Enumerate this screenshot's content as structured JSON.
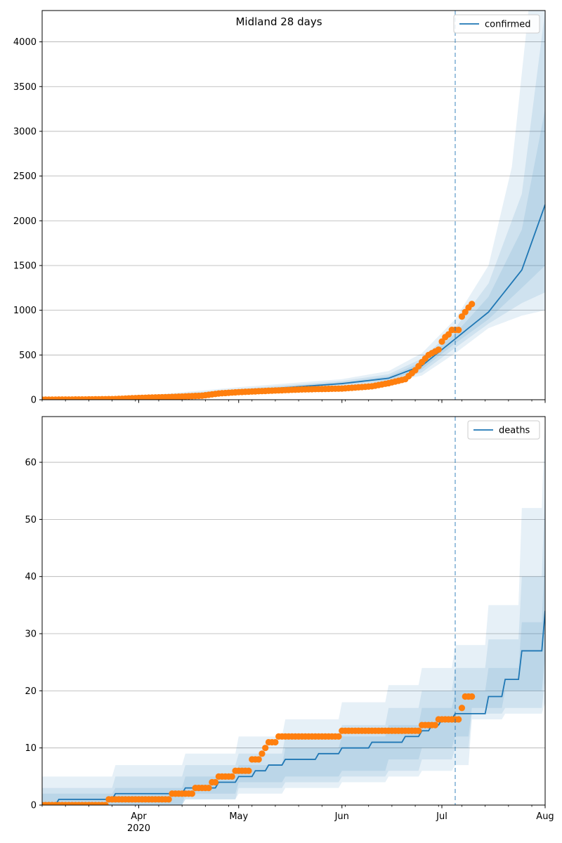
{
  "figure": {
    "title": "Midland 28 days",
    "colors": {
      "model": "#1f77b4",
      "observed": "#ff7f0e",
      "grid": "#b0b0b0",
      "split": "#1f77b4"
    },
    "x_axis": {
      "tick_labels": [
        "Apr",
        "May",
        "Jun",
        "Jul",
        "Aug"
      ],
      "year_label": "2020"
    }
  },
  "chart_data": [
    {
      "type": "line",
      "legend": "confirmed",
      "legend_position": "upper-right",
      "grid": "horizontal",
      "x_unit": "date",
      "xlim": [
        "2020-03-03",
        "2020-08-01"
      ],
      "forecast_start": "2020-07-05",
      "ylim": [
        0,
        4350
      ],
      "yticks": [
        0,
        500,
        1000,
        1500,
        2000,
        2500,
        3000,
        3500,
        4000
      ],
      "median": [
        [
          "2020-03-03",
          0
        ],
        [
          "2020-03-20",
          5
        ],
        [
          "2020-04-01",
          20
        ],
        [
          "2020-04-15",
          45
        ],
        [
          "2020-05-01",
          95
        ],
        [
          "2020-05-15",
          135
        ],
        [
          "2020-06-01",
          180
        ],
        [
          "2020-06-15",
          240
        ],
        [
          "2020-06-25",
          380
        ],
        [
          "2020-07-05",
          680
        ],
        [
          "2020-07-15",
          980
        ],
        [
          "2020-07-25",
          1450
        ],
        [
          "2020-08-01",
          2180
        ]
      ],
      "bands": [
        {
          "level": "outer",
          "lower": [
            [
              "2020-03-03",
              0
            ],
            [
              "2020-04-01",
              12
            ],
            [
              "2020-05-01",
              75
            ],
            [
              "2020-06-01",
              150
            ],
            [
              "2020-06-15",
              190
            ],
            [
              "2020-06-25",
              270
            ],
            [
              "2020-07-05",
              520
            ],
            [
              "2020-07-15",
              800
            ],
            [
              "2020-07-25",
              940
            ],
            [
              "2020-08-01",
              1000
            ]
          ],
          "upper": [
            [
              "2020-03-03",
              10
            ],
            [
              "2020-04-01",
              40
            ],
            [
              "2020-05-01",
              140
            ],
            [
              "2020-06-01",
              230
            ],
            [
              "2020-06-15",
              320
            ],
            [
              "2020-06-25",
              520
            ],
            [
              "2020-07-05",
              900
            ],
            [
              "2020-07-15",
              1500
            ],
            [
              "2020-07-22",
              2600
            ],
            [
              "2020-07-27",
              4350
            ],
            [
              "2020-08-01",
              4350
            ]
          ]
        },
        {
          "level": "middle",
          "lower": [
            [
              "2020-03-03",
              0
            ],
            [
              "2020-04-01",
              15
            ],
            [
              "2020-05-01",
              82
            ],
            [
              "2020-06-01",
              160
            ],
            [
              "2020-06-15",
              205
            ],
            [
              "2020-06-25",
              305
            ],
            [
              "2020-07-05",
              580
            ],
            [
              "2020-07-15",
              850
            ],
            [
              "2020-07-25",
              1080
            ],
            [
              "2020-08-01",
              1200
            ]
          ],
          "upper": [
            [
              "2020-03-03",
              6
            ],
            [
              "2020-04-01",
              30
            ],
            [
              "2020-05-01",
              120
            ],
            [
              "2020-06-01",
              210
            ],
            [
              "2020-06-15",
              285
            ],
            [
              "2020-06-25",
              460
            ],
            [
              "2020-07-05",
              800
            ],
            [
              "2020-07-15",
              1300
            ],
            [
              "2020-07-25",
              2300
            ],
            [
              "2020-08-01",
              4350
            ]
          ]
        },
        {
          "level": "inner",
          "lower": [
            [
              "2020-03-03",
              0
            ],
            [
              "2020-04-01",
              17
            ],
            [
              "2020-05-01",
              88
            ],
            [
              "2020-06-01",
              170
            ],
            [
              "2020-06-15",
              220
            ],
            [
              "2020-06-25",
              340
            ],
            [
              "2020-07-05",
              630
            ],
            [
              "2020-07-15",
              900
            ],
            [
              "2020-07-25",
              1250
            ],
            [
              "2020-08-01",
              1500
            ]
          ],
          "upper": [
            [
              "2020-03-03",
              3
            ],
            [
              "2020-04-01",
              25
            ],
            [
              "2020-05-01",
              105
            ],
            [
              "2020-06-01",
              195
            ],
            [
              "2020-06-15",
              262
            ],
            [
              "2020-06-25",
              420
            ],
            [
              "2020-07-05",
              740
            ],
            [
              "2020-07-15",
              1150
            ],
            [
              "2020-07-25",
              1900
            ],
            [
              "2020-08-01",
              3250
            ]
          ]
        }
      ],
      "observed": [
        [
          "2020-03-03",
          1
        ],
        [
          "2020-03-15",
          3
        ],
        [
          "2020-03-25",
          8
        ],
        [
          "2020-04-01",
          20
        ],
        [
          "2020-04-10",
          30
        ],
        [
          "2020-04-20",
          45
        ],
        [
          "2020-04-25",
          70
        ],
        [
          "2020-05-01",
          85
        ],
        [
          "2020-05-10",
          100
        ],
        [
          "2020-05-20",
          115
        ],
        [
          "2020-06-01",
          125
        ],
        [
          "2020-06-10",
          150
        ],
        [
          "2020-06-15",
          185
        ],
        [
          "2020-06-20",
          230
        ],
        [
          "2020-06-23",
          330
        ],
        [
          "2020-06-25",
          420
        ],
        [
          "2020-06-27",
          500
        ],
        [
          "2020-06-30",
          560
        ],
        [
          "2020-07-01",
          650
        ],
        [
          "2020-07-02",
          700
        ],
        [
          "2020-07-03",
          730
        ],
        [
          "2020-07-04",
          780
        ],
        [
          "2020-07-05",
          780
        ],
        [
          "2020-07-06",
          780
        ],
        [
          "2020-07-07",
          930
        ],
        [
          "2020-07-08",
          980
        ],
        [
          "2020-07-09",
          1030
        ],
        [
          "2020-07-10",
          1070
        ]
      ]
    },
    {
      "type": "line",
      "legend": "deaths",
      "legend_position": "upper-right",
      "grid": "horizontal",
      "x_unit": "date",
      "xlim": [
        "2020-03-03",
        "2020-08-01"
      ],
      "forecast_start": "2020-07-05",
      "ylim": [
        0,
        68
      ],
      "yticks": [
        0,
        10,
        20,
        30,
        40,
        50,
        60
      ],
      "median": [
        [
          "2020-03-03",
          0
        ],
        [
          "2020-03-08",
          1
        ],
        [
          "2020-03-25",
          2
        ],
        [
          "2020-04-15",
          3
        ],
        [
          "2020-04-25",
          4
        ],
        [
          "2020-05-01",
          5
        ],
        [
          "2020-05-06",
          6
        ],
        [
          "2020-05-10",
          7
        ],
        [
          "2020-05-15",
          8
        ],
        [
          "2020-05-25",
          9
        ],
        [
          "2020-06-01",
          10
        ],
        [
          "2020-06-10",
          11
        ],
        [
          "2020-06-20",
          12
        ],
        [
          "2020-06-25",
          13
        ],
        [
          "2020-06-28",
          14
        ],
        [
          "2020-07-01",
          15
        ],
        [
          "2020-07-05",
          16
        ],
        [
          "2020-07-15",
          19
        ],
        [
          "2020-07-20",
          22
        ],
        [
          "2020-07-25",
          27
        ],
        [
          "2020-08-01",
          34
        ]
      ],
      "bands": [
        {
          "level": "outer",
          "lower": [
            [
              "2020-03-03",
              0
            ],
            [
              "2020-04-15",
              1
            ],
            [
              "2020-05-01",
              2
            ],
            [
              "2020-05-15",
              3
            ],
            [
              "2020-06-01",
              4
            ],
            [
              "2020-06-15",
              5
            ],
            [
              "2020-06-25",
              6
            ],
            [
              "2020-07-05",
              7
            ],
            [
              "2020-07-10",
              15
            ],
            [
              "2020-07-20",
              16
            ],
            [
              "2020-08-01",
              18
            ]
          ],
          "upper": [
            [
              "2020-03-03",
              5
            ],
            [
              "2020-03-25",
              7
            ],
            [
              "2020-04-15",
              9
            ],
            [
              "2020-05-01",
              12
            ],
            [
              "2020-05-15",
              15
            ],
            [
              "2020-06-01",
              18
            ],
            [
              "2020-06-15",
              21
            ],
            [
              "2020-06-25",
              24
            ],
            [
              "2020-07-05",
              28
            ],
            [
              "2020-07-15",
              35
            ],
            [
              "2020-07-25",
              52
            ],
            [
              "2020-08-01",
              68
            ]
          ]
        },
        {
          "level": "middle",
          "lower": [
            [
              "2020-03-03",
              0
            ],
            [
              "2020-04-15",
              1
            ],
            [
              "2020-05-01",
              3
            ],
            [
              "2020-05-15",
              4
            ],
            [
              "2020-06-01",
              5
            ],
            [
              "2020-06-15",
              6
            ],
            [
              "2020-06-25",
              8
            ],
            [
              "2020-07-05",
              10
            ],
            [
              "2020-07-10",
              16
            ],
            [
              "2020-07-20",
              17
            ],
            [
              "2020-08-01",
              22
            ]
          ],
          "upper": [
            [
              "2020-03-03",
              3
            ],
            [
              "2020-03-25",
              5
            ],
            [
              "2020-04-15",
              7
            ],
            [
              "2020-05-01",
              9
            ],
            [
              "2020-05-15",
              12
            ],
            [
              "2020-06-01",
              14
            ],
            [
              "2020-06-15",
              17
            ],
            [
              "2020-06-25",
              20
            ],
            [
              "2020-07-05",
              24
            ],
            [
              "2020-07-15",
              29
            ],
            [
              "2020-07-25",
              40
            ],
            [
              "2020-08-01",
              56
            ]
          ]
        },
        {
          "level": "inner",
          "lower": [
            [
              "2020-03-03",
              0
            ],
            [
              "2020-04-15",
              2
            ],
            [
              "2020-05-01",
              4
            ],
            [
              "2020-05-15",
              5
            ],
            [
              "2020-06-01",
              6
            ],
            [
              "2020-06-15",
              8
            ],
            [
              "2020-06-25",
              10
            ],
            [
              "2020-07-05",
              12
            ],
            [
              "2020-07-10",
              17
            ],
            [
              "2020-07-20",
              20
            ],
            [
              "2020-08-01",
              26
            ]
          ],
          "upper": [
            [
              "2020-03-03",
              2
            ],
            [
              "2020-03-25",
              3
            ],
            [
              "2020-04-15",
              5
            ],
            [
              "2020-05-01",
              7
            ],
            [
              "2020-05-15",
              10
            ],
            [
              "2020-06-01",
              12
            ],
            [
              "2020-06-15",
              14
            ],
            [
              "2020-06-25",
              17
            ],
            [
              "2020-07-05",
              20
            ],
            [
              "2020-07-15",
              24
            ],
            [
              "2020-07-25",
              32
            ],
            [
              "2020-08-01",
              45
            ]
          ]
        }
      ],
      "observed": [
        [
          "2020-03-03",
          0
        ],
        [
          "2020-03-22",
          0
        ],
        [
          "2020-03-23",
          1
        ],
        [
          "2020-04-10",
          1
        ],
        [
          "2020-04-11",
          2
        ],
        [
          "2020-04-17",
          2
        ],
        [
          "2020-04-18",
          3
        ],
        [
          "2020-04-22",
          3
        ],
        [
          "2020-04-23",
          4
        ],
        [
          "2020-04-24",
          4
        ],
        [
          "2020-04-25",
          5
        ],
        [
          "2020-04-29",
          5
        ],
        [
          "2020-04-30",
          6
        ],
        [
          "2020-05-04",
          6
        ],
        [
          "2020-05-05",
          8
        ],
        [
          "2020-05-07",
          8
        ],
        [
          "2020-05-08",
          9
        ],
        [
          "2020-05-09",
          10
        ],
        [
          "2020-05-10",
          11
        ],
        [
          "2020-05-12",
          11
        ],
        [
          "2020-05-13",
          12
        ],
        [
          "2020-05-31",
          12
        ],
        [
          "2020-06-01",
          13
        ],
        [
          "2020-06-24",
          13
        ],
        [
          "2020-06-25",
          14
        ],
        [
          "2020-06-29",
          14
        ],
        [
          "2020-06-30",
          15
        ],
        [
          "2020-07-05",
          15
        ],
        [
          "2020-07-06",
          15
        ],
        [
          "2020-07-07",
          17
        ],
        [
          "2020-07-08",
          19
        ],
        [
          "2020-07-10",
          19
        ]
      ]
    }
  ]
}
